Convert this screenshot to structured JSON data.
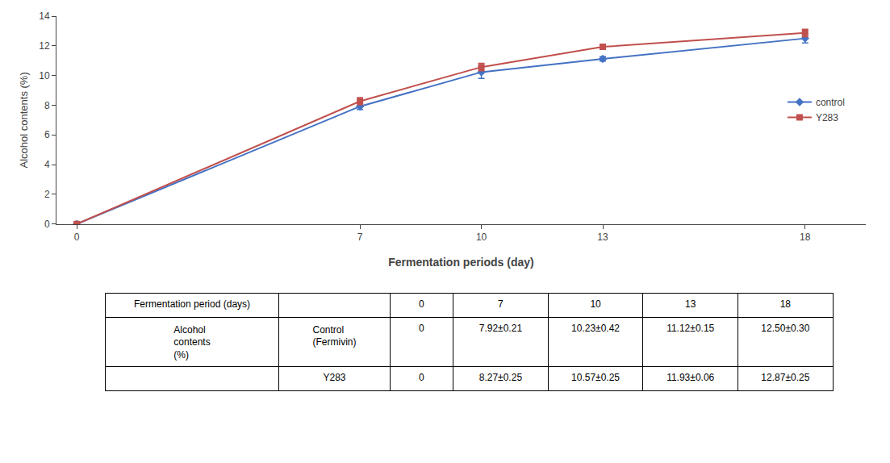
{
  "chart_data": [
    {
      "type": "line",
      "xlabel": "Fermentation periods (day)",
      "ylabel": "Alcohol contents (%)",
      "x": [
        0,
        7,
        10,
        13,
        18
      ],
      "xlim": [
        -0.5,
        19.5
      ],
      "xticks": [
        0,
        7,
        10,
        13,
        18
      ],
      "ylim": [
        0,
        14
      ],
      "yticks": [
        0,
        2,
        4,
        6,
        8,
        10,
        12,
        14
      ],
      "grid": false,
      "legend": "right",
      "series": [
        {
          "name": "control",
          "color": "#4472C4",
          "marker": "diamond",
          "values": [
            0,
            7.92,
            10.23,
            11.12,
            12.5
          ],
          "errors": [
            0,
            0.21,
            0.42,
            0.15,
            0.3
          ]
        },
        {
          "name": "Y283",
          "color": "#C0504D",
          "marker": "square",
          "values": [
            0,
            8.27,
            10.57,
            11.93,
            12.87
          ],
          "errors": [
            0,
            0.25,
            0.25,
            0.06,
            0.25
          ]
        }
      ]
    },
    {
      "type": "table",
      "header": [
        "Fermentation period (days)",
        null,
        "0",
        "7",
        "10",
        "13",
        "18"
      ],
      "rows": [
        [
          "Alcohol\ncontents\n(%)",
          "Control\n(Fermivin)",
          "0",
          "7.92±0.21",
          "10.23±0.42",
          "11.12±0.15",
          "12.50±0.30"
        ],
        [
          null,
          "Y283",
          "0",
          "8.27±0.25",
          "10.57±0.25",
          "11.93±0.06",
          "12.87±0.25"
        ]
      ]
    }
  ]
}
